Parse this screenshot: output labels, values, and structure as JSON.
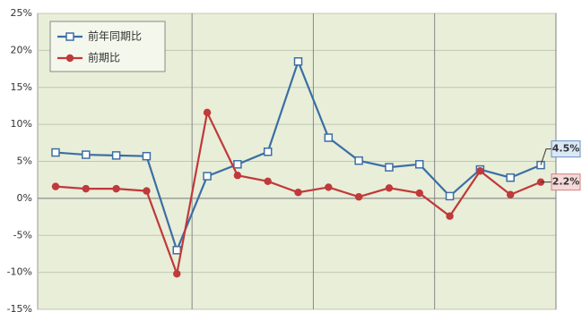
{
  "chart_data": {
    "type": "line",
    "categories": [
      null,
      null,
      null,
      null,
      null,
      null,
      null,
      null,
      null,
      null,
      null,
      null,
      null,
      null,
      null,
      null,
      null
    ],
    "series": [
      {
        "name": "前年同期比",
        "color": "#3b6ea5",
        "values": [
          6.2,
          5.9,
          5.8,
          5.7,
          -7.0,
          3.0,
          4.6,
          6.3,
          18.5,
          8.2,
          5.1,
          4.2,
          4.6,
          0.3,
          3.9,
          2.8,
          4.5
        ],
        "marker": "square",
        "value_labels": [
          null,
          null,
          null,
          null,
          null,
          null,
          null,
          null,
          null,
          null,
          null,
          null,
          null,
          null,
          null,
          null,
          "4.5%"
        ]
      },
      {
        "name": "前期比",
        "color": "#c0393b",
        "values": [
          1.6,
          1.3,
          1.3,
          1.0,
          -10.2,
          11.6,
          3.1,
          2.3,
          0.8,
          1.5,
          0.2,
          1.4,
          0.7,
          -2.4,
          3.7,
          0.5,
          2.2
        ],
        "marker": "circle",
        "value_labels": [
          null,
          null,
          null,
          null,
          null,
          null,
          null,
          null,
          null,
          null,
          null,
          null,
          null,
          null,
          null,
          null,
          "2.2%"
        ]
      }
    ],
    "ylim": [
      -15,
      25
    ],
    "yticks": [
      {
        "value": -15,
        "label": "-15%"
      },
      {
        "value": -10,
        "label": "-10%"
      },
      {
        "value": -5,
        "label": "-5%"
      },
      {
        "value": 0,
        "label": "0%"
      },
      {
        "value": 5,
        "label": "5%"
      },
      {
        "value": 10,
        "label": "10%"
      },
      {
        "value": 15,
        "label": "15%"
      },
      {
        "value": 20,
        "label": "20%"
      },
      {
        "value": 25,
        "label": "25%"
      }
    ],
    "grid": true,
    "legend": "top-left"
  }
}
